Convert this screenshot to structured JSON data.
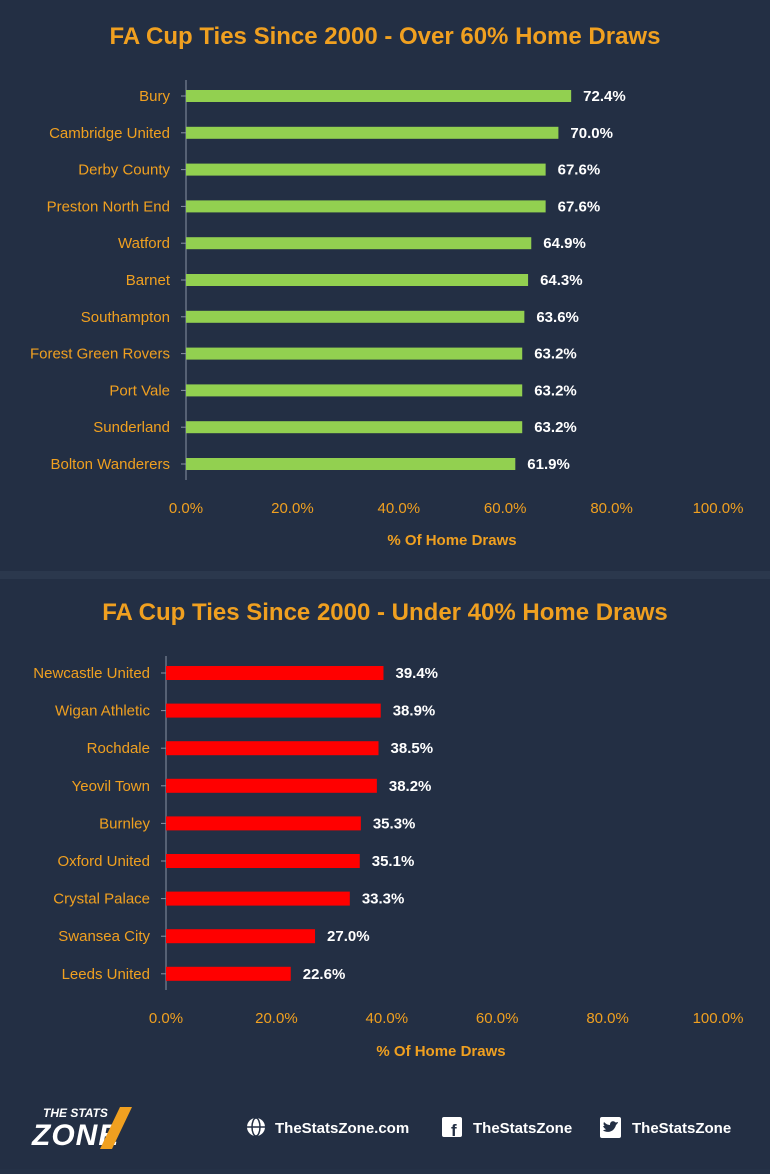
{
  "colors": {
    "background": "#232f44",
    "accent": "#f0a020",
    "bar_green": "#92d050",
    "bar_red": "#ff0000",
    "label_white": "#ffffff"
  },
  "chart_data": [
    {
      "type": "bar",
      "orientation": "horizontal",
      "title": "FA Cup Ties Since 2000 - Over 60% Home Draws",
      "xlabel": "% Of Home Draws",
      "categories": [
        "Bury",
        "Cambridge United",
        "Derby County",
        "Preston North End",
        "Watford",
        "Barnet",
        "Southampton",
        "Forest Green Rovers",
        "Port Vale",
        "Sunderland",
        "Bolton Wanderers"
      ],
      "values": [
        72.4,
        70.0,
        67.6,
        67.6,
        64.9,
        64.3,
        63.6,
        63.2,
        63.2,
        63.2,
        61.9
      ],
      "value_labels": [
        "72.4%",
        "70.0%",
        "67.6%",
        "67.6%",
        "64.9%",
        "64.3%",
        "63.6%",
        "63.2%",
        "63.2%",
        "63.2%",
        "61.9%"
      ],
      "xlim": [
        0,
        100
      ],
      "xticks": [
        "0.0%",
        "20.0%",
        "40.0%",
        "60.0%",
        "80.0%",
        "100.0%"
      ],
      "bar_color": "#92d050",
      "grid": false,
      "legend": "none"
    },
    {
      "type": "bar",
      "orientation": "horizontal",
      "title": "FA Cup Ties Since 2000 - Under 40% Home Draws",
      "xlabel": "% Of Home Draws",
      "categories": [
        "Newcastle United",
        "Wigan Athletic",
        "Rochdale",
        "Yeovil Town",
        "Burnley",
        "Oxford United",
        "Crystal Palace",
        "Swansea City",
        "Leeds United"
      ],
      "values": [
        39.4,
        38.9,
        38.5,
        38.2,
        35.3,
        35.1,
        33.3,
        27.0,
        22.6
      ],
      "value_labels": [
        "39.4%",
        "38.9%",
        "38.5%",
        "38.2%",
        "35.3%",
        "35.1%",
        "33.3%",
        "27.0%",
        "22.6%"
      ],
      "xlim": [
        0,
        100
      ],
      "xticks": [
        "0.0%",
        "20.0%",
        "40.0%",
        "60.0%",
        "80.0%",
        "100.0%"
      ],
      "bar_color": "#ff0000",
      "grid": false,
      "legend": "none"
    }
  ],
  "footer": {
    "logo_line1": "THE STATS",
    "logo_line2": "ZONE",
    "website": "TheStatsZone.com",
    "facebook": "TheStatsZone",
    "twitter": "TheStatsZone",
    "icons": [
      "globe-icon",
      "facebook-icon",
      "twitter-icon"
    ]
  }
}
